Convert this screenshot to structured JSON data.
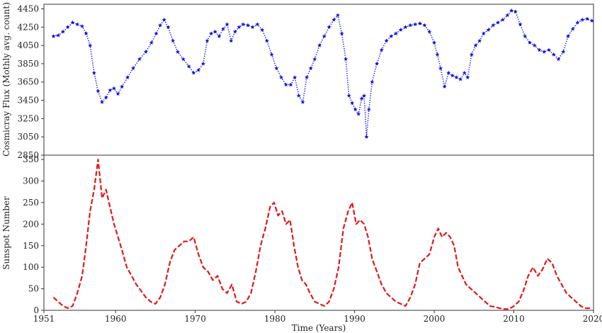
{
  "chart_data": [
    {
      "type": "line",
      "panel": "top",
      "ylabel": "Cosmicray Flux (Mothly avg. count)",
      "ylim": [
        2850,
        4500
      ],
      "yticks": [
        2850,
        3050,
        3250,
        3450,
        3650,
        3850,
        4050,
        4250,
        4450
      ],
      "xlim": [
        1951,
        2020
      ],
      "series": [
        {
          "color": "#1010e0",
          "line_style": "dotted",
          "marker": "star",
          "x": [
            1952.2,
            1952.8,
            1953.4,
            1954.0,
            1954.6,
            1955.2,
            1955.8,
            1956.3,
            1956.8,
            1957.3,
            1957.8,
            1958.3,
            1958.8,
            1959.3,
            1959.8,
            1960.3,
            1960.8,
            1961.5,
            1962.2,
            1963.0,
            1963.8,
            1964.5,
            1965.1,
            1965.6,
            1966.1,
            1966.6,
            1967.2,
            1967.8,
            1968.5,
            1969.2,
            1969.8,
            1970.4,
            1971.0,
            1971.5,
            1972.0,
            1972.5,
            1973.0,
            1973.5,
            1974.0,
            1974.5,
            1975.0,
            1975.5,
            1976.0,
            1976.6,
            1977.2,
            1977.8,
            1978.4,
            1979.0,
            1979.6,
            1980.2,
            1980.8,
            1981.4,
            1982.0,
            1982.5,
            1983.0,
            1983.5,
            1984.0,
            1984.5,
            1985.0,
            1985.6,
            1986.2,
            1986.8,
            1987.4,
            1987.9,
            1988.4,
            1988.9,
            1989.3,
            1989.7,
            1990.1,
            1990.5,
            1990.9,
            1991.2,
            1991.5,
            1991.8,
            1992.2,
            1992.8,
            1993.4,
            1994.0,
            1994.6,
            1995.2,
            1995.8,
            1996.4,
            1997.0,
            1997.6,
            1998.2,
            1998.8,
            1999.4,
            2000.0,
            2000.4,
            2000.8,
            2001.3,
            2001.8,
            2002.3,
            2002.8,
            2003.3,
            2003.8,
            2004.2,
            2004.7,
            2005.2,
            2005.7,
            2006.2,
            2006.8,
            2007.4,
            2008.0,
            2008.6,
            2009.2,
            2009.7,
            2010.2,
            2010.8,
            2011.4,
            2012.0,
            2012.6,
            2013.2,
            2013.8,
            2014.4,
            2015.0,
            2015.6,
            2016.2,
            2016.8,
            2017.4,
            2018.0,
            2018.6,
            2019.2,
            2019.8
          ],
          "y": [
            4150,
            4160,
            4200,
            4250,
            4300,
            4280,
            4260,
            4180,
            4050,
            3750,
            3550,
            3430,
            3480,
            3560,
            3580,
            3520,
            3600,
            3700,
            3800,
            3900,
            3980,
            4080,
            4180,
            4270,
            4330,
            4250,
            4100,
            3980,
            3900,
            3820,
            3750,
            3780,
            3850,
            4100,
            4180,
            4200,
            4150,
            4230,
            4280,
            4100,
            4200,
            4250,
            4280,
            4270,
            4250,
            4280,
            4220,
            4100,
            3950,
            3800,
            3700,
            3620,
            3620,
            3700,
            3500,
            3430,
            3700,
            3800,
            3900,
            4050,
            4150,
            4250,
            4330,
            4380,
            4180,
            3900,
            3500,
            3420,
            3350,
            3300,
            3470,
            3500,
            3050,
            3350,
            3650,
            3850,
            4000,
            4100,
            4150,
            4180,
            4220,
            4250,
            4270,
            4280,
            4290,
            4270,
            4200,
            4080,
            3950,
            3800,
            3600,
            3750,
            3720,
            3700,
            3680,
            3750,
            3700,
            3950,
            4050,
            4100,
            4180,
            4220,
            4270,
            4300,
            4330,
            4380,
            4430,
            4420,
            4280,
            4150,
            4080,
            4050,
            4000,
            3980,
            4000,
            3950,
            3900,
            3980,
            4150,
            4230,
            4300,
            4330,
            4340,
            4320
          ]
        }
      ]
    },
    {
      "type": "line",
      "panel": "bottom",
      "xlabel": "Time (Years)",
      "ylabel": "Sunspot Number",
      "ylim": [
        0,
        360
      ],
      "yticks": [
        0,
        50,
        100,
        150,
        200,
        250,
        300,
        350
      ],
      "xlim": [
        1951,
        2020
      ],
      "xticks": [
        1951,
        1960,
        1970,
        1980,
        1990,
        2000,
        2010,
        2020
      ],
      "series": [
        {
          "color": "#e01818",
          "line_style": "dashed",
          "x": [
            1952.2,
            1952.8,
            1953.4,
            1954.0,
            1954.6,
            1955.2,
            1955.8,
            1956.3,
            1956.8,
            1957.3,
            1957.8,
            1958.3,
            1958.8,
            1959.3,
            1959.8,
            1960.3,
            1960.8,
            1961.4,
            1962.0,
            1962.6,
            1963.2,
            1963.8,
            1964.4,
            1965.0,
            1965.6,
            1966.2,
            1966.8,
            1967.4,
            1968.0,
            1968.6,
            1969.2,
            1969.8,
            1970.4,
            1971.0,
            1971.6,
            1972.2,
            1972.8,
            1973.4,
            1974.0,
            1974.6,
            1975.2,
            1975.8,
            1976.4,
            1977.0,
            1977.6,
            1978.2,
            1978.8,
            1979.4,
            1979.9,
            1980.4,
            1980.9,
            1981.4,
            1981.9,
            1982.4,
            1982.9,
            1983.4,
            1983.9,
            1984.4,
            1985.0,
            1985.6,
            1986.2,
            1986.8,
            1987.4,
            1988.0,
            1988.6,
            1989.2,
            1989.7,
            1990.2,
            1990.7,
            1991.2,
            1991.7,
            1992.2,
            1992.8,
            1993.4,
            1994.0,
            1994.6,
            1995.2,
            1995.8,
            1996.4,
            1997.0,
            1997.6,
            1998.2,
            1998.8,
            1999.4,
            2000.0,
            2000.5,
            2001.0,
            2001.5,
            2002.0,
            2002.5,
            2003.0,
            2003.5,
            2004.0,
            2004.6,
            2005.2,
            2005.8,
            2006.4,
            2007.0,
            2007.6,
            2008.2,
            2008.8,
            2009.4,
            2010.0,
            2010.6,
            2011.2,
            2011.8,
            2012.4,
            2013.0,
            2013.6,
            2014.2,
            2014.8,
            2015.4,
            2016.0,
            2016.6,
            2017.2,
            2017.8,
            2018.4,
            2019.0,
            2019.6
          ],
          "y": [
            30,
            20,
            10,
            5,
            10,
            40,
            80,
            150,
            230,
            280,
            350,
            260,
            280,
            240,
            200,
            170,
            140,
            100,
            80,
            60,
            45,
            30,
            20,
            15,
            30,
            60,
            110,
            140,
            150,
            160,
            160,
            170,
            130,
            100,
            90,
            70,
            80,
            50,
            40,
            60,
            20,
            15,
            20,
            40,
            90,
            150,
            190,
            240,
            250,
            220,
            230,
            200,
            210,
            150,
            100,
            70,
            60,
            40,
            20,
            15,
            10,
            20,
            50,
            100,
            190,
            230,
            250,
            200,
            210,
            200,
            170,
            120,
            90,
            60,
            40,
            30,
            20,
            15,
            10,
            30,
            60,
            110,
            120,
            130,
            170,
            190,
            170,
            180,
            170,
            150,
            100,
            80,
            60,
            50,
            40,
            30,
            20,
            10,
            8,
            5,
            3,
            3,
            10,
            20,
            45,
            80,
            100,
            80,
            95,
            120,
            110,
            80,
            60,
            40,
            30,
            20,
            10,
            5,
            5
          ]
        }
      ]
    }
  ]
}
